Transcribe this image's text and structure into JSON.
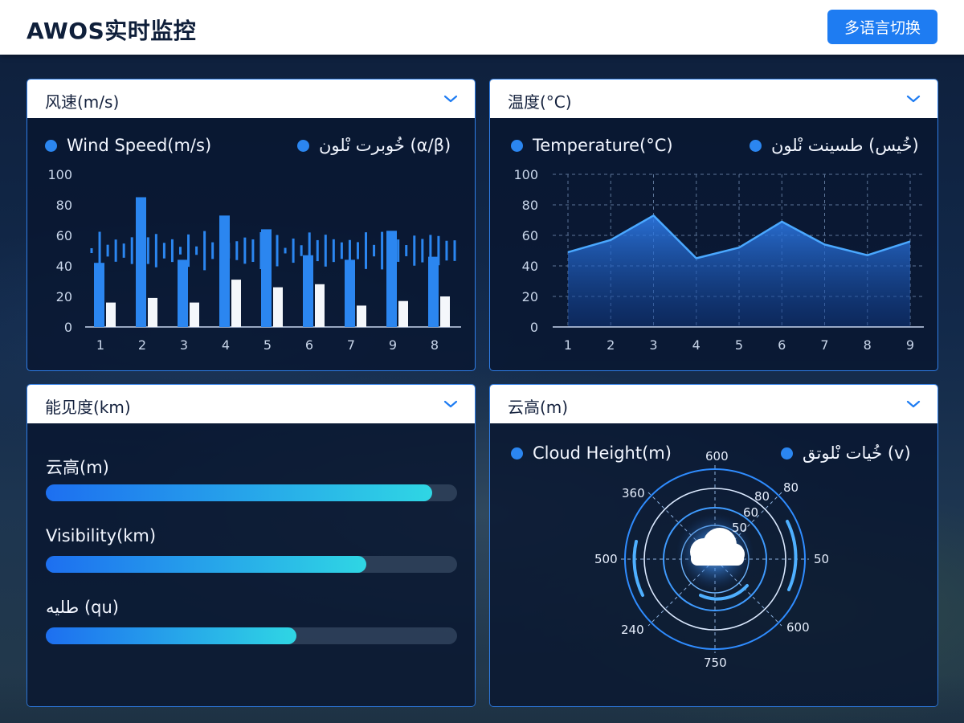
{
  "header": {
    "title": "AWOS实时监控",
    "lang_button": "多语言切换"
  },
  "panels": {
    "wind": {
      "title": "风速(m/s)",
      "legend_left": "Wind Speed(m/s)",
      "legend_right": "خُوبرت نْلون (α/β)"
    },
    "temperature": {
      "title": "温度(°C)",
      "legend_left": "Temperature(°C)",
      "legend_right": "خُيس) طسينت نْلون)"
    },
    "visibility": {
      "title": "能见度(km)",
      "bars": [
        {
          "label": "云高(m)",
          "value": 0.94
        },
        {
          "label": "Visibility(km)",
          "value": 0.78
        },
        {
          "label": "طليه (qu)",
          "value": 0.61
        }
      ]
    },
    "cloud": {
      "title": "云高(m)",
      "legend_left": "Cloud Height(m)",
      "legend_right": "خُيات نْلوتق (v)",
      "radar_labels": [
        "600",
        "80",
        "80",
        "60",
        "50",
        "360",
        "500",
        "50",
        "240",
        "600",
        "750"
      ]
    }
  },
  "chart_data": [
    {
      "type": "bar",
      "title": "风速(m/s)",
      "categories": [
        "1",
        "2",
        "3",
        "4",
        "5",
        "6",
        "7",
        "9",
        "8"
      ],
      "series": [
        {
          "name": "Wind Speed(m/s)",
          "values": [
            42,
            85,
            44,
            73,
            64,
            47,
            44,
            63,
            46
          ]
        },
        {
          "name": "خُوبرت نْلون (α/β)",
          "values": [
            16,
            19,
            16,
            31,
            26,
            28,
            14,
            17,
            20
          ]
        }
      ],
      "ylim": [
        0,
        100
      ],
      "yticks": [
        0,
        20,
        40,
        60,
        80,
        100
      ],
      "grid": false,
      "legend": "top"
    },
    {
      "type": "area",
      "title": "温度(°C)",
      "x": [
        "1",
        "2",
        "3",
        "4",
        "5",
        "6",
        "7",
        "8",
        "9"
      ],
      "series": [
        {
          "name": "Temperature(°C)",
          "values": [
            49,
            57,
            73,
            45,
            52,
            69,
            54,
            47,
            56
          ]
        }
      ],
      "ylim": [
        0,
        100
      ],
      "yticks": [
        0,
        20,
        40,
        60,
        80,
        100
      ],
      "grid": true,
      "legend": "top"
    }
  ],
  "colors": {
    "accent": "#1e7cf2",
    "bar_primary": "#2b86f0",
    "bar_secondary": "#f4f7fb",
    "line": "#4aa8ff",
    "panel_border": "#2f7ee8"
  },
  "icons": {
    "panel_toggle": "chevron-down-icon",
    "cloud": "cloud-icon",
    "legend_marker": "legend-dot-icon"
  }
}
